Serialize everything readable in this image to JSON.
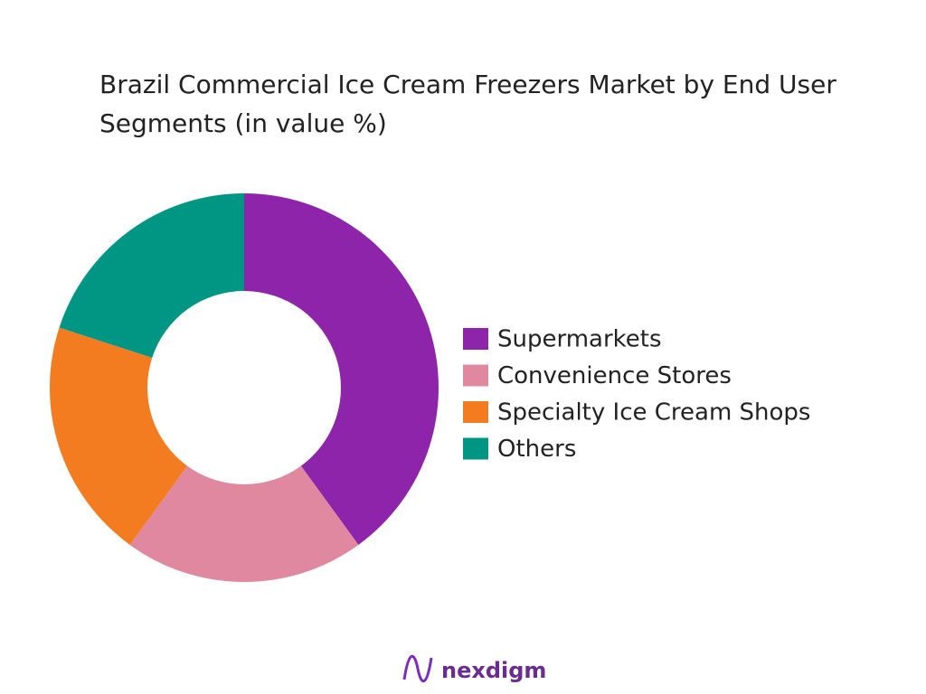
{
  "chart_data": {
    "type": "donut",
    "title": "Brazil Commercial Ice Cream Freezers Market by End User Segments (in value %)",
    "categories": [
      "Supermarkets",
      "Convenience Stores",
      "Specialty Ice Cream Shops",
      "Others"
    ],
    "values": [
      40,
      20,
      20,
      20
    ],
    "colors": [
      "#8e24aa",
      "#df889f",
      "#f47c20",
      "#009684"
    ],
    "legend": "right"
  },
  "brand": "nexdigm"
}
